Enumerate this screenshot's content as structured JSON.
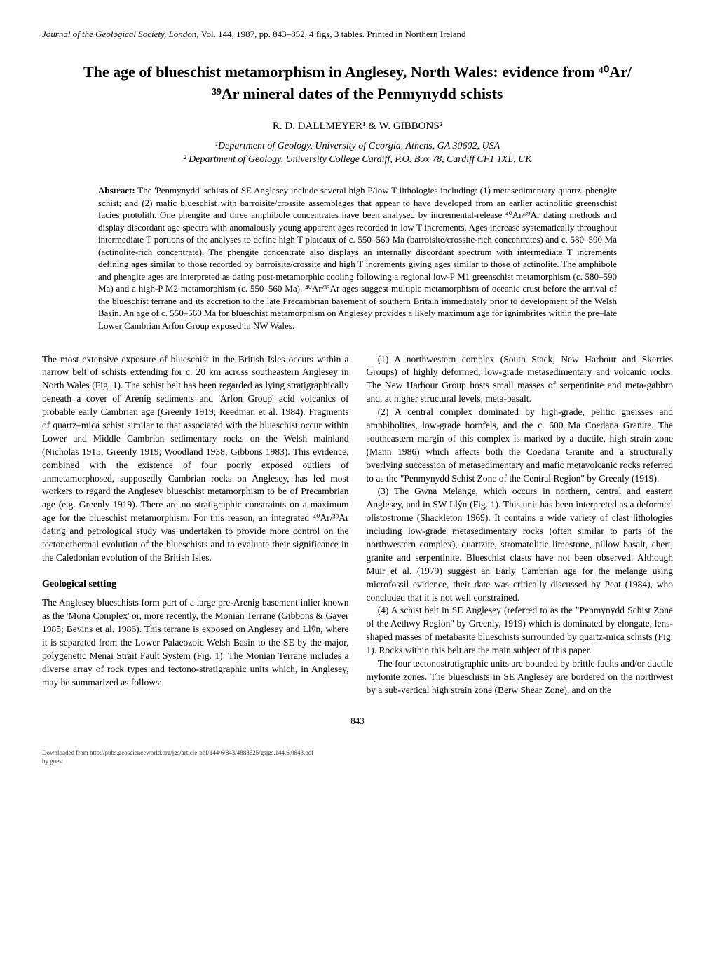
{
  "header": {
    "journal": "Journal of the Geological Society, London",
    "vol": "Vol. 144",
    "year": "1987",
    "pages": "pp. 843–852",
    "figs_tables": "4 figs, 3 tables",
    "printed": "Printed in Northern Ireland"
  },
  "title": "The age of blueschist metamorphism in Anglesey, North Wales: evidence from ⁴⁰Ar/³⁹Ar mineral dates of the Penmynydd schists",
  "authors": "R. D. DALLMEYER¹ & W. GIBBONS²",
  "affiliations": {
    "a1": "¹Department of Geology, University of Georgia, Athens, GA 30602, USA",
    "a2": "² Department of Geology, University College Cardiff, P.O. Box 78, Cardiff CF1 1XL, UK"
  },
  "abstract_label": "Abstract:",
  "abstract": "The 'Penmynydd' schists of SE Anglesey include several high P/low T lithologies including: (1) metasedimentary quartz–phengite schist; and (2) mafic blueschist with barroisite/crossite assemblages that appear to have developed from an earlier actinolitic greenschist facies protolith. One phengite and three amphibole concentrates have been analysed by incremental-release ⁴⁰Ar/³⁹Ar dating methods and display discordant age spectra with anomalously young apparent ages recorded in low T increments. Ages increase systematically throughout intermediate T portions of the analyses to define high T plateaux of c. 550–560 Ma (barroisite/crossite-rich concentrates) and c. 580–590 Ma (actinolite-rich concentrate). The phengite concentrate also displays an internally discordant spectrum with intermediate T increments defining ages similar to those recorded by barroisite/crossite and high T increments giving ages similar to those of actinolite. The amphibole and phengite ages are interpreted as dating post-metamorphic cooling following a regional low-P M1 greenschist metamorphism (c. 580–590 Ma) and a high-P M2 metamorphism (c. 550–560 Ma). ⁴⁰Ar/³⁹Ar ages suggest multiple metamorphism of oceanic crust before the arrival of the blueschist terrane and its accretion to the late Precambrian basement of southern Britain immediately prior to development of the Welsh Basin. An age of c. 550–560 Ma for blueschist metamorphism on Anglesey provides a likely maximum age for ignimbrites within the pre–late Lower Cambrian Arfon Group exposed in NW Wales.",
  "body": {
    "p1": "The most extensive exposure of blueschist in the British Isles occurs within a narrow belt of schists extending for c. 20 km across southeastern Anglesey in North Wales (Fig. 1). The schist belt has been regarded as lying stratigraphically beneath a cover of Arenig sediments and 'Arfon Group' acid volcanics of probable early Cambrian age (Greenly 1919; Reedman et al. 1984). Fragments of quartz–mica schist similar to that associated with the blueschist occur within Lower and Middle Cambrian sedimentary rocks on the Welsh mainland (Nicholas 1915; Greenly 1919; Woodland 1938; Gibbons 1983). This evidence, combined with the existence of four poorly exposed outliers of unmetamorphosed, supposedly Cambrian rocks on Anglesey, has led most workers to regard the Anglesey blueschist metamorphism to be of Precambrian age (e.g. Greenly 1919). There are no stratigraphic constraints on a maximum age for the blueschist metamorphism. For this reason, an integrated ⁴⁰Ar/³⁹Ar dating and petrological study was undertaken to provide more control on the tectonothermal evolution of the blueschists and to evaluate their significance in the Caledonian evolution of the British Isles.",
    "section_heading": "Geological setting",
    "p2": "The Anglesey blueschists form part of a large pre-Arenig basement inlier known as the 'Mona Complex' or, more recently, the Monian Terrane (Gibbons & Gayer 1985; Bevins et al. 1986). This terrane is exposed on Anglesey and Llŷn, where it is separated from the Lower Palaeozoic Welsh Basin to the SE by the major, polygenetic Menai Strait Fault System (Fig. 1). The Monian Terrane includes a diverse array of rock types and tectono-stratigraphic units which, in Anglesey, may be summarized as follows:",
    "p3": "(1) A northwestern complex (South Stack, New Harbour and Skerries Groups) of highly deformed, low-grade metasedimentary and volcanic rocks. The New Harbour Group hosts small masses of serpentinite and meta-gabbro and, at higher structural levels, meta-basalt.",
    "p4": "(2) A central complex dominated by high-grade, pelitic gneisses and amphibolites, low-grade hornfels, and the c. 600 Ma Coedana Granite. The southeastern margin of this complex is marked by a ductile, high strain zone (Mann 1986) which affects both the Coedana Granite and a structurally overlying succession of metasedimentary and mafic metavolcanic rocks referred to as the \"Penmynydd Schist Zone of the Central Region\" by Greenly (1919).",
    "p5": "(3) The Gwna Melange, which occurs in northern, central and eastern Anglesey, and in SW Llŷn (Fig. 1). This unit has been interpreted as a deformed olistostrome (Shackleton 1969). It contains a wide variety of clast lithologies including low-grade metasedimentary rocks (often similar to parts of the northwestern complex), quartzite, stromatolitic limestone, pillow basalt, chert, granite and serpentinite. Blueschist clasts have not been observed. Although Muir et al. (1979) suggest an Early Cambrian age for the melange using microfossil evidence, their date was critically discussed by Peat (1984), who concluded that it is not well constrained.",
    "p6": "(4) A schist belt in SE Anglesey (referred to as the \"Penmynydd Schist Zone of the Aethwy Region\" by Greenly, 1919) which is dominated by elongate, lens-shaped masses of metabasite blueschists surrounded by quartz-mica schists (Fig. 1). Rocks within this belt are the main subject of this paper.",
    "p7": "The four tectonostratigraphic units are bounded by brittle faults and/or ductile mylonite zones. The blueschists in SE Anglesey are bordered on the northwest by a sub-vertical high strain zone (Berw Shear Zone), and on the"
  },
  "page_number": "843",
  "footer": {
    "line1": "Downloaded from http://pubs.geoscienceworld.org/jgs/article-pdf/144/6/843/4888625/gsjgs.144.6.0843.pdf",
    "line2": "by guest"
  }
}
